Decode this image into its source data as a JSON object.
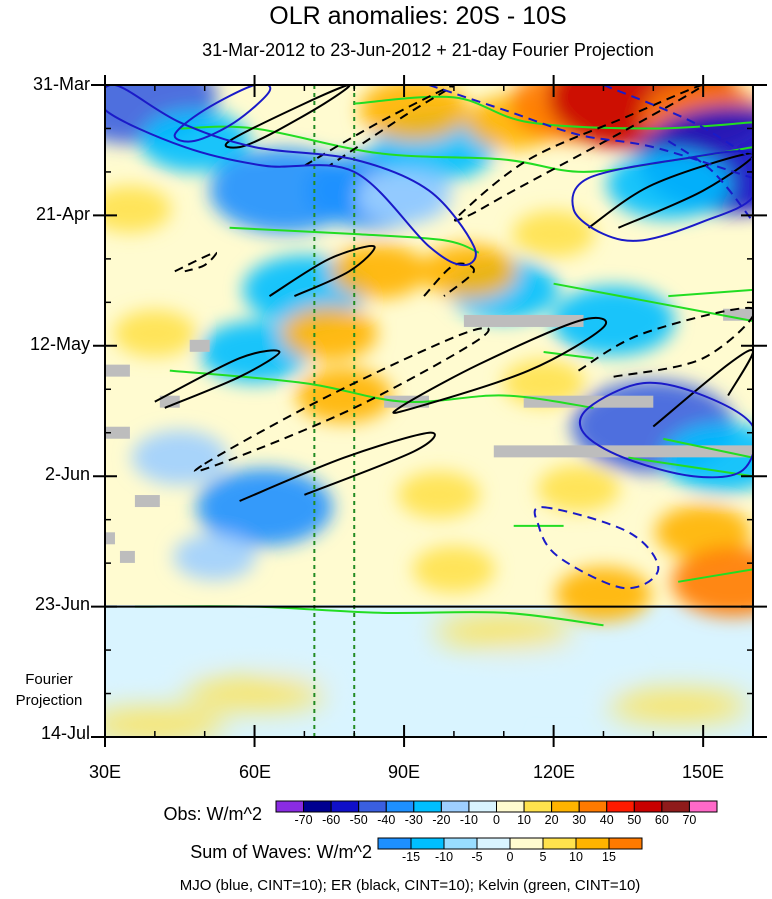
{
  "chart_data": {
    "type": "heatmap",
    "title": "OLR anomalies: 20S - 10S",
    "subtitle": "31-Mar-2012 to 23-Jun-2012 + 21-day Fourier Projection",
    "x_axis": {
      "ticks": [
        "30E",
        "60E",
        "90E",
        "120E",
        "150E"
      ],
      "tick_values": [
        30,
        60,
        90,
        120,
        150
      ],
      "range": [
        30,
        160
      ]
    },
    "y_axis": {
      "ticks": [
        "31-Mar",
        "21-Apr",
        "12-May",
        "2-Jun",
        "23-Jun",
        "14-Jul"
      ],
      "tick_days": [
        0,
        21,
        42,
        63,
        84,
        105
      ],
      "range": [
        0,
        105
      ],
      "direction": "down"
    },
    "projection_label": "Fourier\nProjection",
    "projection_start_day": 84,
    "reference_lines_lon": [
      72,
      80
    ],
    "obs_colorbar": {
      "title": "Obs: W/m^2",
      "labels": [
        "-70",
        "-60",
        "-50",
        "-40",
        "-30",
        "-20",
        "-10",
        "0",
        "10",
        "20",
        "30",
        "40",
        "50",
        "60",
        "70"
      ],
      "colors": [
        "#8a2be2",
        "#000090",
        "#1010c8",
        "#3a5fe0",
        "#1e90ff",
        "#00bfff",
        "#9ecfff",
        "#d9f4ff",
        "#fffbd0",
        "#ffe24d",
        "#ffb400",
        "#ff7a00",
        "#ff1a00",
        "#c80000",
        "#8f1b1b",
        "#ff69c8"
      ]
    },
    "wave_colorbar": {
      "title": "Sum of Waves: W/m^2",
      "labels": [
        "-15",
        "-10",
        "-5",
        "0",
        "5",
        "10",
        "15"
      ],
      "colors": [
        "#1e90ff",
        "#00bfff",
        "#99ddff",
        "#d9f4ff",
        "#fffbd0",
        "#ffe24d",
        "#ffb400",
        "#ff7a00"
      ]
    },
    "footer": "MJO (blue, CINT=10); ER (black, CINT=10); Kelvin (green, CINT=10)",
    "field_samples": [
      {
        "lon": 36,
        "day": 2,
        "olr": -45
      },
      {
        "lon": 48,
        "day": 9,
        "olr": -25
      },
      {
        "lon": 66,
        "day": 17,
        "olr": -40
      },
      {
        "lon": 84,
        "day": 17,
        "olr": -35
      },
      {
        "lon": 96,
        "day": 10,
        "olr": -30
      },
      {
        "lon": 92,
        "day": 4,
        "olr": 25
      },
      {
        "lon": 112,
        "day": 6,
        "olr": 20
      },
      {
        "lon": 125,
        "day": 3,
        "olr": 35
      },
      {
        "lon": 138,
        "day": 2,
        "olr": 55
      },
      {
        "lon": 150,
        "day": 5,
        "olr": 30
      },
      {
        "lon": 156,
        "day": 12,
        "olr": -55
      },
      {
        "lon": 143,
        "day": 16,
        "olr": -30
      },
      {
        "lon": 70,
        "day": 33,
        "olr": -30
      },
      {
        "lon": 110,
        "day": 33,
        "olr": -25
      },
      {
        "lon": 132,
        "day": 38,
        "olr": -30
      },
      {
        "lon": 85,
        "day": 30,
        "olr": 20
      },
      {
        "lon": 103,
        "day": 30,
        "olr": 20
      },
      {
        "lon": 60,
        "day": 43,
        "olr": -25
      },
      {
        "lon": 45,
        "day": 60,
        "olr": -20
      },
      {
        "lon": 78,
        "day": 50,
        "olr": 20
      },
      {
        "lon": 140,
        "day": 55,
        "olr": -45
      },
      {
        "lon": 154,
        "day": 60,
        "olr": -30
      },
      {
        "lon": 62,
        "day": 68,
        "olr": -35
      },
      {
        "lon": 97,
        "day": 66,
        "olr": 15
      },
      {
        "lon": 125,
        "day": 65,
        "olr": 15
      },
      {
        "lon": 150,
        "day": 72,
        "olr": 20
      },
      {
        "lon": 52,
        "day": 76,
        "olr": -15
      },
      {
        "lon": 100,
        "day": 78,
        "olr": 15
      },
      {
        "lon": 130,
        "day": 82,
        "olr": 20
      },
      {
        "lon": 156,
        "day": 80,
        "olr": 30
      },
      {
        "lon": 90,
        "day": 18,
        "olr": -20
      },
      {
        "lon": 120,
        "day": 24,
        "olr": 15
      },
      {
        "lon": 40,
        "day": 40,
        "olr": 15
      },
      {
        "lon": 75,
        "day": 40,
        "olr": 20
      },
      {
        "lon": 118,
        "day": 48,
        "olr": 15
      },
      {
        "lon": 35,
        "day": 20,
        "olr": 15
      }
    ],
    "projection_samples": [
      {
        "lon": 40,
        "day": 90,
        "olr": -5
      },
      {
        "lon": 75,
        "day": 92,
        "olr": -5
      },
      {
        "lon": 60,
        "day": 98,
        "olr": 5
      },
      {
        "lon": 95,
        "day": 100,
        "olr": -5
      },
      {
        "lon": 120,
        "day": 94,
        "olr": -5
      },
      {
        "lon": 145,
        "day": 100,
        "olr": 5
      },
      {
        "lon": 110,
        "day": 88,
        "olr": 5
      },
      {
        "lon": 40,
        "day": 103,
        "olr": 5
      }
    ],
    "missing_data_bars": [
      {
        "lon0": 30,
        "lon1": 35,
        "day": 46
      },
      {
        "lon0": 41,
        "lon1": 45,
        "day": 51
      },
      {
        "lon0": 30,
        "lon1": 35,
        "day": 56
      },
      {
        "lon0": 36,
        "lon1": 41,
        "day": 67
      },
      {
        "lon0": 30,
        "lon1": 32,
        "day": 73
      },
      {
        "lon0": 33,
        "lon1": 36,
        "day": 76
      },
      {
        "lon0": 47,
        "lon1": 51,
        "day": 42
      },
      {
        "lon0": 102,
        "lon1": 126,
        "day": 38
      },
      {
        "lon0": 154,
        "lon1": 160,
        "day": 37
      },
      {
        "lon0": 86,
        "lon1": 95,
        "day": 51
      },
      {
        "lon0": 114,
        "lon1": 140,
        "day": 51
      },
      {
        "lon0": 108,
        "lon1": 160,
        "day": 59
      }
    ],
    "mjo_contours": [
      {
        "sign": "+",
        "points": [
          [
            32,
            0
          ],
          [
            45,
            6
          ],
          [
            60,
            10
          ],
          [
            80,
            12
          ],
          [
            95,
            17
          ],
          [
            104,
            26
          ],
          [
            102,
            29
          ],
          [
            95,
            26
          ],
          [
            80,
            14
          ],
          [
            62,
            13
          ],
          [
            46,
            10
          ],
          [
            30,
            4
          ]
        ]
      },
      {
        "sign": "+",
        "points": [
          [
            60,
            0
          ],
          [
            63,
            1
          ],
          [
            56,
            6
          ],
          [
            48,
            9
          ],
          [
            44,
            8
          ],
          [
            50,
            4
          ]
        ]
      },
      {
        "sign": "+",
        "points": [
          [
            127,
            15
          ],
          [
            145,
            12
          ],
          [
            160,
            11
          ],
          [
            160,
            18
          ],
          [
            150,
            22
          ],
          [
            138,
            25
          ],
          [
            130,
            24
          ],
          [
            124,
            20
          ]
        ]
      },
      {
        "sign": "+",
        "points": [
          [
            127,
            52
          ],
          [
            138,
            48
          ],
          [
            150,
            50
          ],
          [
            160,
            55
          ],
          [
            158,
            62
          ],
          [
            148,
            63
          ],
          [
            134,
            60
          ],
          [
            126,
            56
          ]
        ]
      },
      {
        "sign": "-",
        "points": [
          [
            95,
            0
          ],
          [
            110,
            4
          ],
          [
            125,
            8
          ],
          [
            140,
            10
          ],
          [
            160,
            15
          ]
        ]
      },
      {
        "sign": "-",
        "points": [
          [
            130,
            0
          ],
          [
            148,
            6
          ],
          [
            160,
            12
          ]
        ]
      },
      {
        "sign": "-",
        "points": [
          [
            143,
            9
          ],
          [
            152,
            14
          ],
          [
            160,
            22
          ]
        ]
      },
      {
        "sign": "-",
        "points": [
          [
            118,
            68
          ],
          [
            135,
            72
          ],
          [
            141,
            78
          ],
          [
            134,
            81
          ],
          [
            121,
            76
          ],
          [
            117,
            71
          ]
        ]
      }
    ],
    "er_contours": [
      {
        "sign": "+",
        "points": [
          [
            55,
            9
          ],
          [
            70,
            3
          ],
          [
            79,
            0
          ],
          [
            74,
            3
          ],
          [
            63,
            8
          ],
          [
            57,
            10
          ]
        ]
      },
      {
        "sign": "+",
        "points": [
          [
            63,
            34
          ],
          [
            75,
            28
          ],
          [
            84,
            26
          ],
          [
            79,
            30
          ],
          [
            68,
            34
          ]
        ]
      },
      {
        "sign": "+",
        "points": [
          [
            40,
            51
          ],
          [
            57,
            44
          ],
          [
            65,
            43
          ],
          [
            57,
            47
          ],
          [
            42,
            52
          ]
        ]
      },
      {
        "sign": "+",
        "points": [
          [
            89,
            52
          ],
          [
            105,
            45
          ],
          [
            125,
            38
          ],
          [
            130,
            39
          ],
          [
            115,
            46
          ],
          [
            92,
            52
          ]
        ]
      },
      {
        "sign": "+",
        "points": [
          [
            57,
            67
          ],
          [
            78,
            60
          ],
          [
            95,
            56
          ],
          [
            92,
            59
          ],
          [
            70,
            66
          ]
        ]
      },
      {
        "sign": "+",
        "points": [
          [
            127,
            23
          ],
          [
            140,
            16
          ],
          [
            160,
            11
          ],
          [
            150,
            17
          ],
          [
            133,
            23
          ]
        ]
      },
      {
        "sign": "+",
        "points": [
          [
            140,
            55
          ],
          [
            155,
            45
          ],
          [
            160,
            43
          ],
          [
            155,
            50
          ]
        ]
      },
      {
        "sign": "-",
        "points": [
          [
            70,
            13
          ],
          [
            85,
            6
          ],
          [
            100,
            0
          ],
          [
            90,
            5
          ],
          [
            75,
            13
          ]
        ]
      },
      {
        "sign": "-",
        "points": [
          [
            101,
            21
          ],
          [
            115,
            12
          ],
          [
            135,
            5
          ],
          [
            150,
            0
          ],
          [
            135,
            7
          ],
          [
            112,
            17
          ],
          [
            103,
            21
          ]
        ]
      },
      {
        "sign": "-",
        "points": [
          [
            94,
            34
          ],
          [
            100,
            29
          ],
          [
            104,
            30
          ],
          [
            98,
            34
          ]
        ]
      },
      {
        "sign": "-",
        "points": [
          [
            50,
            61
          ],
          [
            75,
            50
          ],
          [
            102,
            40
          ],
          [
            105,
            41
          ],
          [
            80,
            52
          ],
          [
            53,
            61
          ]
        ]
      },
      {
        "sign": "-",
        "points": [
          [
            125,
            46
          ],
          [
            138,
            40
          ],
          [
            160,
            36
          ],
          [
            150,
            44
          ],
          [
            132,
            47
          ]
        ]
      },
      {
        "sign": "-",
        "points": [
          [
            44,
            30
          ],
          [
            52,
            27
          ],
          [
            50,
            29
          ],
          [
            46,
            30
          ]
        ]
      }
    ],
    "kelvin_contours": [
      {
        "points": [
          [
            45,
            7
          ],
          [
            60,
            7
          ],
          [
            85,
            11
          ],
          [
            110,
            12
          ],
          [
            126,
            14
          ],
          [
            145,
            12
          ],
          [
            160,
            10
          ]
        ]
      },
      {
        "points": [
          [
            80,
            3
          ],
          [
            100,
            2
          ],
          [
            115,
            6
          ],
          [
            140,
            7
          ],
          [
            160,
            6
          ]
        ]
      },
      {
        "points": [
          [
            55,
            23
          ],
          [
            80,
            24
          ],
          [
            98,
            25
          ],
          [
            105,
            27
          ]
        ]
      },
      {
        "points": [
          [
            43,
            46
          ],
          [
            70,
            48
          ],
          [
            90,
            51
          ],
          [
            110,
            50
          ],
          [
            128,
            52
          ]
        ]
      },
      {
        "points": [
          [
            120,
            32
          ],
          [
            140,
            35
          ],
          [
            160,
            38
          ]
        ]
      },
      {
        "points": [
          [
            143,
            34
          ],
          [
            160,
            33
          ]
        ]
      },
      {
        "points": [
          [
            142,
            57
          ],
          [
            160,
            60
          ]
        ]
      },
      {
        "points": [
          [
            135,
            60
          ],
          [
            160,
            63
          ]
        ]
      },
      {
        "points": [
          [
            36,
            84
          ],
          [
            60,
            84
          ],
          [
            85,
            85
          ],
          [
            110,
            85
          ],
          [
            130,
            87
          ]
        ]
      },
      {
        "points": [
          [
            145,
            80
          ],
          [
            160,
            78
          ]
        ]
      },
      {
        "points": [
          [
            112,
            71
          ],
          [
            122,
            71
          ]
        ]
      },
      {
        "points": [
          [
            118,
            43
          ],
          [
            128,
            44
          ]
        ]
      }
    ]
  }
}
